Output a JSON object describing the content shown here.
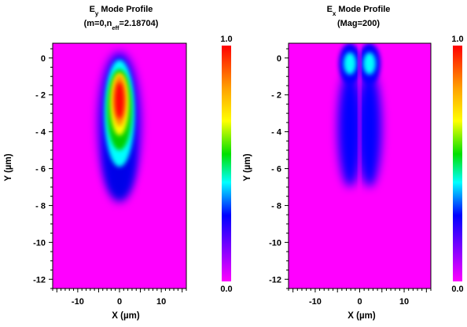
{
  "chart_data": [
    {
      "type": "heatmap",
      "title": "E",
      "title_sub": "y",
      "title_rest": " Mode Profile",
      "subtitle_parts": [
        "(m=0,n",
        "eff",
        "=2.18704)"
      ],
      "xlabel": "X (µm)",
      "ylabel": "Y (µm)",
      "xlim": [
        -16,
        16
      ],
      "ylim": [
        -12.5,
        0.8
      ],
      "xticks": [
        -10,
        0,
        10
      ],
      "xtick_labels": [
        "-10",
        "0",
        "10"
      ],
      "yticks": [
        0,
        -2,
        -4,
        -6,
        -8,
        -10,
        -12
      ],
      "ytick_labels": [
        "0",
        "- 2",
        "- 4",
        "- 6",
        "- 8",
        "-10",
        "-12"
      ],
      "colorbar": {
        "min": 0.0,
        "max": 1.0,
        "min_label": "0.0",
        "max_label": "1.0"
      },
      "field": {
        "shape": "single-lobe",
        "peak_x": 0,
        "peak_y": -2.3,
        "peak_value": 1.0,
        "tail_to_y": -7.5
      }
    },
    {
      "type": "heatmap",
      "title": "E",
      "title_sub": "x",
      "title_rest": " Mode Profile",
      "subtitle_parts": [
        "(Mag=200)"
      ],
      "xlabel": "X (µm)",
      "ylabel": "Y (µm)",
      "xlim": [
        -16,
        16
      ],
      "ylim": [
        -12.5,
        0.8
      ],
      "xticks": [
        -10,
        0,
        10
      ],
      "xtick_labels": [
        "-10",
        "0",
        "10"
      ],
      "yticks": [
        0,
        -2,
        -4,
        -6,
        -8,
        -10,
        -12
      ],
      "ytick_labels": [
        "0",
        "- 2",
        "- 4",
        "- 6",
        "- 8",
        "-10",
        "-12"
      ],
      "colorbar": {
        "min": 0.0,
        "max": 1.0,
        "min_label": "0.0",
        "max_label": "1.0"
      },
      "field": {
        "shape": "four-lobe",
        "lobes_x": [
          -2.2,
          2.2
        ],
        "lobes_y": [
          -0.3,
          -3.5
        ],
        "node_x": 0
      }
    }
  ]
}
